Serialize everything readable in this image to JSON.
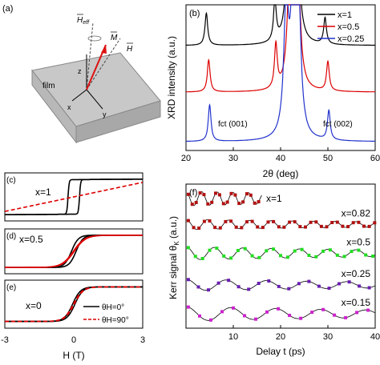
{
  "panel_a": {
    "label": "(a)",
    "film_label": "film",
    "axis_x": "x",
    "axis_y": "y",
    "axis_z": "z",
    "vec_heff": "H",
    "vec_heff_sub": "eff",
    "vec_m": "M",
    "vec_h": "H"
  },
  "panel_f_note": {
    "theta_sub": "K"
  },
  "chart_data": [
    {
      "panel": "(b)",
      "type": "line",
      "title": "",
      "xlabel": "2θ (deg)",
      "ylabel": "XRD intensity (a.u.)",
      "xlim": [
        20,
        60
      ],
      "xticks": [
        "20",
        "30",
        "40",
        "50",
        "60"
      ],
      "legend_position": "top-right",
      "series": [
        {
          "name": "x=1",
          "color": "#000000",
          "baseline": 0.72,
          "peaks": [
            {
              "x": 24.3,
              "h": 0.22,
              "w": 0.35
            },
            {
              "x": 38.8,
              "h": 0.28,
              "w": 0.35
            },
            {
              "x": 41.8,
              "h": 0.9,
              "w": 0.6
            },
            {
              "x": 43.4,
              "h": 0.9,
              "w": 0.6
            },
            {
              "x": 49.4,
              "h": 0.18,
              "w": 0.35
            }
          ]
        },
        {
          "name": "x=0.5",
          "color": "#dd0000",
          "baseline": 0.4,
          "peaks": [
            {
              "x": 24.8,
              "h": 0.22,
              "w": 0.35
            },
            {
              "x": 39.0,
              "h": 0.3,
              "w": 0.35
            },
            {
              "x": 42.0,
              "h": 0.9,
              "w": 0.6
            },
            {
              "x": 43.6,
              "h": 0.9,
              "w": 0.6
            },
            {
              "x": 50.0,
              "h": 0.2,
              "w": 0.35
            }
          ]
        },
        {
          "name": "x=0.25",
          "color": "#2233cc",
          "baseline": 0.06,
          "peaks": [
            {
              "x": 25.0,
              "h": 0.25,
              "w": 0.35
            },
            {
              "x": 41.2,
              "h": 0.9,
              "w": 0.6
            },
            {
              "x": 42.6,
              "h": 0.9,
              "w": 0.6
            },
            {
              "x": 43.8,
              "h": 0.9,
              "w": 0.6
            },
            {
              "x": 50.2,
              "h": 0.2,
              "w": 0.35
            }
          ]
        }
      ],
      "annotations": [
        "fct (001)",
        "fct (002)"
      ]
    },
    {
      "panel": "(c)",
      "type": "line",
      "annotation": "x=1",
      "xlim": [
        -3,
        3
      ],
      "series": [
        {
          "name": "θH=0°",
          "color": "#000000",
          "style": "solid",
          "coercivity": 0.25,
          "width": 0.05,
          "slope": 0.01
        },
        {
          "name": "θH=90°",
          "color": "#dd0000",
          "style": "dashed",
          "linear_slope": 0.28
        }
      ]
    },
    {
      "panel": "(d)",
      "type": "line",
      "annotation": "x=0.5",
      "xlim": [
        -3,
        3
      ],
      "series": [
        {
          "name": "θH=0°",
          "color": "#000000",
          "style": "solid",
          "coercivity": 0.1,
          "width": 0.3
        },
        {
          "name": "θH=90°",
          "color": "#dd0000",
          "style": "solid",
          "coercivity": 0.02,
          "width": 0.5
        }
      ]
    },
    {
      "panel": "(e)",
      "type": "line",
      "annotation": "x=0",
      "xlabel": "H (T)",
      "xlim": [
        -3,
        3
      ],
      "xticks": [
        "-3",
        "0",
        "3"
      ],
      "legend_position": "bottom-right",
      "series": [
        {
          "name": "θH=0°",
          "color": "#000000",
          "style": "solid",
          "coercivity": 0.05,
          "width": 0.35
        },
        {
          "name": "θH=90°",
          "color": "#dd0000",
          "style": "dashed",
          "coercivity": 0.02,
          "width": 0.4
        }
      ]
    },
    {
      "panel": "(f)",
      "type": "scatter",
      "xlabel": "Delay t (ps)",
      "ylabel": "Kerr signal θ",
      "ylabel_unit": "(a.u.)",
      "xlim": [
        0,
        40
      ],
      "xticks": [
        "10",
        "20",
        "30",
        "40"
      ],
      "series": [
        {
          "name": "x=1",
          "color": "#b01010",
          "offset": 0.9,
          "amp": 0.05,
          "period": 3.3,
          "tmax": 16
        },
        {
          "name": "x=0.82",
          "color": "#b01010",
          "offset": 0.72,
          "amp": 0.035,
          "period": 4.5,
          "tmax": 40
        },
        {
          "name": "x=0.5",
          "color": "#22dd22",
          "offset": 0.52,
          "amp": 0.045,
          "period": 6.0,
          "tmax": 40
        },
        {
          "name": "x=0.25",
          "color": "#6a1fb0",
          "offset": 0.3,
          "amp": 0.04,
          "period": 8.5,
          "tmax": 40
        },
        {
          "name": "x=0.15",
          "color": "#cc22cc",
          "offset": 0.1,
          "amp": 0.05,
          "period": 9.5,
          "tmax": 40
        }
      ]
    }
  ]
}
